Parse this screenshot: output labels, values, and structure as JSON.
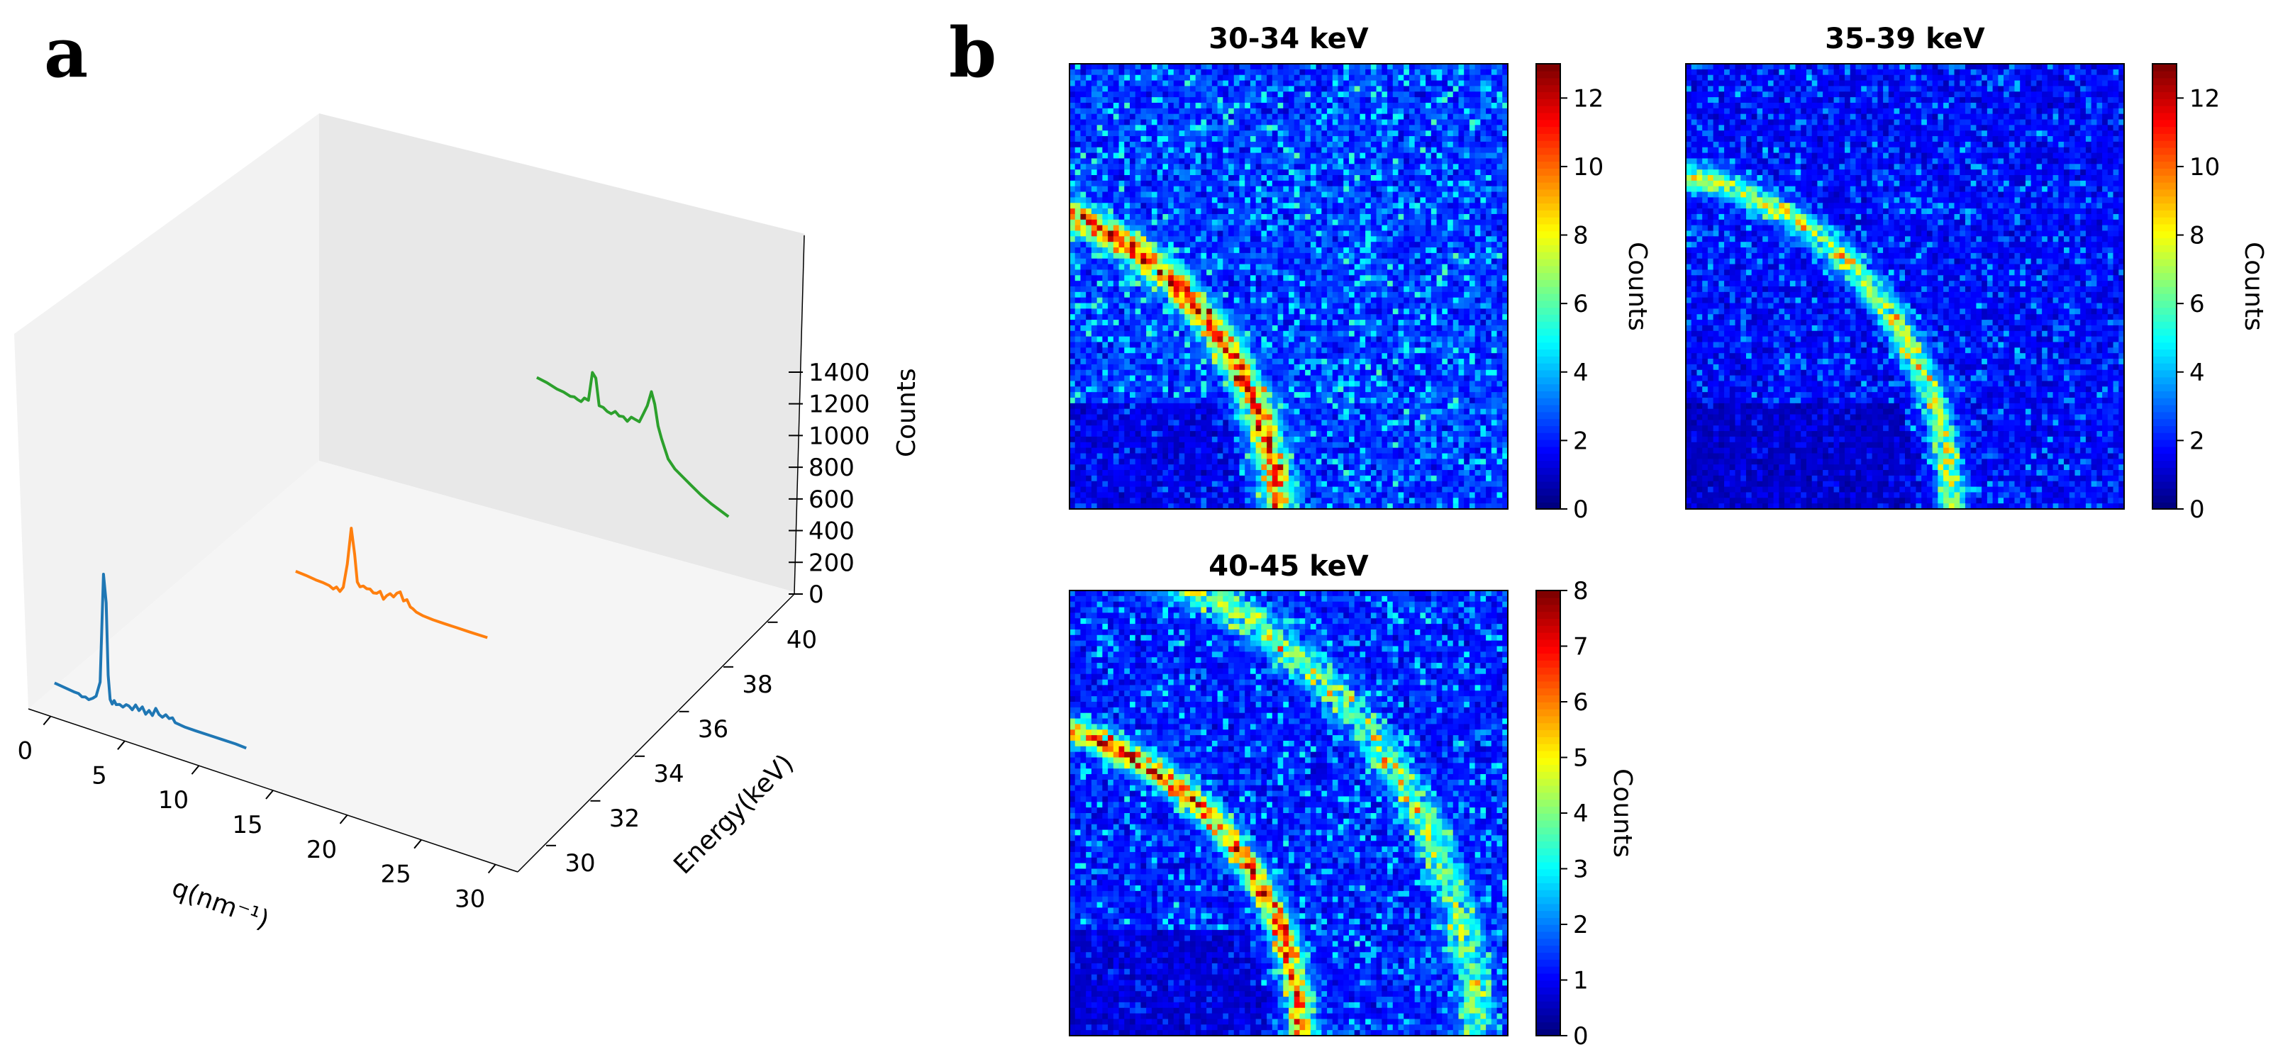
{
  "panel_labels": {
    "a": "a",
    "b": "b"
  },
  "chart_data": [
    {
      "type": "line",
      "projection": "3d",
      "panel": "a",
      "xlabel": "q(nm⁻¹)",
      "ylabel": "Energy(keV)",
      "zlabel": "Counts",
      "xlim": [
        -1,
        32
      ],
      "ylim": [
        29,
        41
      ],
      "zlim": [
        0,
        1500
      ],
      "xticks": [
        "0",
        "5",
        "10",
        "15",
        "20",
        "25",
        "30"
      ],
      "yticks": [
        "30",
        "32",
        "34",
        "36",
        "38",
        "40"
      ],
      "zticks": [
        "0",
        "200",
        "400",
        "600",
        "800",
        "1000",
        "1200",
        "1400"
      ],
      "series": [
        {
          "name": "30-34 keV",
          "energy": 30,
          "color": "#1f77b4",
          "x": [
            2.0,
            3.5,
            5.0,
            5.6,
            6.1,
            6.6,
            7.1,
            7.7,
            8.2,
            8.8,
            9.3,
            9.7,
            10.0,
            10.3,
            10.6,
            10.9,
            11.2,
            11.7,
            12.2,
            12.7,
            13.1,
            13.6,
            14.1,
            14.6,
            15.1,
            15.6,
            16.1,
            16.6,
            17.1,
            17.6,
            18.1,
            18.6,
            19.1,
            19.6,
            20.0,
            20.5,
            21.5,
            23,
            25,
            27,
            29,
            30.6
          ],
          "y": [
            110,
            95,
            80,
            78,
            58,
            65,
            50,
            72,
            98,
            230,
            1170,
            930,
            310,
            105,
            70,
            105,
            75,
            85,
            70,
            100,
            95,
            70,
            120,
            80,
            120,
            65,
            105,
            70,
            140,
            95,
            80,
            110,
            85,
            100,
            65,
            60,
            50,
            45,
            40,
            35,
            30,
            20
          ]
        },
        {
          "name": "35-39 keV",
          "energy": 35,
          "color": "#ff7f0e",
          "x": [
            2.0,
            3.5,
            5.0,
            6.0,
            7.0,
            7.6,
            8.1,
            8.6,
            9.1,
            9.7,
            10.3,
            10.8,
            11.2,
            11.6,
            12.1,
            12.6,
            13.1,
            13.6,
            14.1,
            14.6,
            15.1,
            15.6,
            16.1,
            16.6,
            17.1,
            17.6,
            18.1,
            18.6,
            19.1,
            19.5,
            20,
            21,
            22.5,
            24,
            26,
            28,
            30.6
          ],
          "y": [
            110,
            100,
            85,
            80,
            70,
            50,
            75,
            45,
            90,
            300,
            620,
            400,
            170,
            135,
            150,
            135,
            140,
            115,
            120,
            145,
            85,
            125,
            150,
            130,
            170,
            190,
            120,
            140,
            85,
            75,
            55,
            40,
            30,
            25,
            20,
            15,
            10
          ]
        },
        {
          "name": "40-45 keV",
          "energy": 40,
          "color": "#2ca02c",
          "x": [
            2.0,
            3.5,
            5.0,
            6.0,
            7.0,
            7.6,
            8.1,
            8.6,
            9.1,
            9.7,
            10.3,
            10.8,
            11.3,
            11.9,
            12.5,
            13.1,
            13.7,
            14.3,
            14.9,
            15.5,
            16.1,
            16.7,
            17.3,
            17.9,
            18.5,
            19.1,
            19.6,
            20.1,
            20.6,
            21.1,
            21.6,
            22.6,
            23.8,
            25,
            26.5,
            28,
            30.6
          ],
          "y": [
            820,
            800,
            770,
            760,
            740,
            745,
            730,
            720,
            760,
            750,
            1000,
            960,
            730,
            725,
            700,
            690,
            720,
            690,
            695,
            665,
            710,
            700,
            690,
            770,
            850,
            980,
            880,
            700,
            600,
            520,
            440,
            370,
            320,
            270,
            210,
            160,
            90
          ]
        }
      ]
    },
    {
      "type": "heatmap",
      "panel": "b",
      "title": "30-34 keV",
      "colorbar_label": "Counts",
      "vmin": 0,
      "vmax": 13,
      "colorbar_ticks": [
        "0",
        "2",
        "4",
        "6",
        "8",
        "10",
        "12"
      ],
      "rows": 80,
      "cols": 80,
      "ring_center": [
        -24,
        84
      ],
      "ring_radius": 62,
      "ring_width": 2.6,
      "peak_mean": 7,
      "background_mean": 2.6,
      "background_jitter": 2.4,
      "seed": 11
    },
    {
      "type": "heatmap",
      "panel": "b",
      "title": "35-39 keV",
      "colorbar_label": "Counts",
      "vmin": 0,
      "vmax": 13,
      "colorbar_ticks": [
        "0",
        "2",
        "4",
        "6",
        "8",
        "10",
        "12"
      ],
      "rows": 80,
      "cols": 80,
      "ring_center": [
        -14,
        80
      ],
      "ring_radius": 62,
      "ring_width": 2.4,
      "peak_mean": 5,
      "background_mean": 1.8,
      "background_jitter": 1.8,
      "seed": 23
    },
    {
      "type": "heatmap",
      "panel": "b",
      "title": "40-45 keV",
      "colorbar_label": "Counts",
      "vmin": 0,
      "vmax": 8,
      "colorbar_ticks": [
        "0",
        "1",
        "2",
        "3",
        "4",
        "5",
        "6",
        "7",
        "8"
      ],
      "rows": 80,
      "cols": 80,
      "ring_center": [
        -18,
        82
      ],
      "ring_radius": 60,
      "ring_width": 2.2,
      "outer_ring_radius": 92,
      "outer_ring_peak": 2.8,
      "peak_mean": 4.5,
      "background_mean": 1.3,
      "background_jitter": 1.4,
      "seed": 37
    }
  ]
}
